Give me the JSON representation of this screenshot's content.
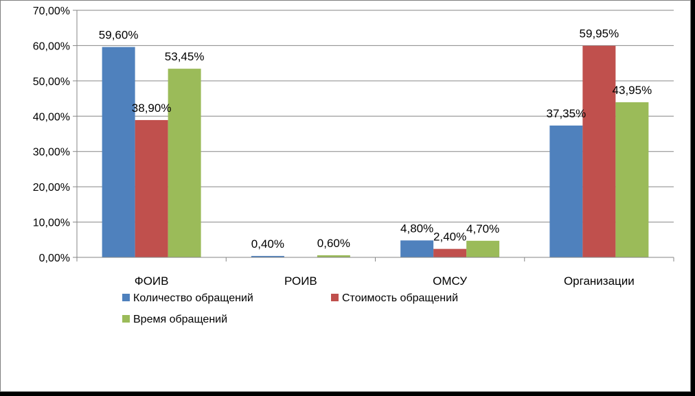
{
  "chart_data": {
    "type": "bar",
    "categories": [
      "ФОИВ",
      "РОИВ",
      "ОМСУ",
      "Организации"
    ],
    "series": [
      {
        "name": "Количество обращений",
        "color": "#4f81bd",
        "values": [
          59.6,
          0.4,
          4.8,
          37.35
        ],
        "labels": [
          "59,60%",
          "0,40%",
          "4,80%",
          "37,35%"
        ]
      },
      {
        "name": "Стоимость обращений",
        "color": "#c0504d",
        "values": [
          38.9,
          0.0,
          2.4,
          59.95
        ],
        "labels": [
          "38,90%",
          "",
          "2,40%",
          "59,95%"
        ]
      },
      {
        "name": "Время обращений",
        "color": "#9bbb59",
        "values": [
          53.45,
          0.6,
          4.7,
          43.95
        ],
        "labels": [
          "53,45%",
          "0,60%",
          "4,70%",
          "43,95%"
        ]
      }
    ],
    "y_ticks": [
      "0,00%",
      "10,00%",
      "20,00%",
      "30,00%",
      "40,00%",
      "50,00%",
      "60,00%",
      "70,00%"
    ],
    "ylim": [
      0,
      70
    ],
    "grid": true,
    "legend_placement": "bottom"
  }
}
